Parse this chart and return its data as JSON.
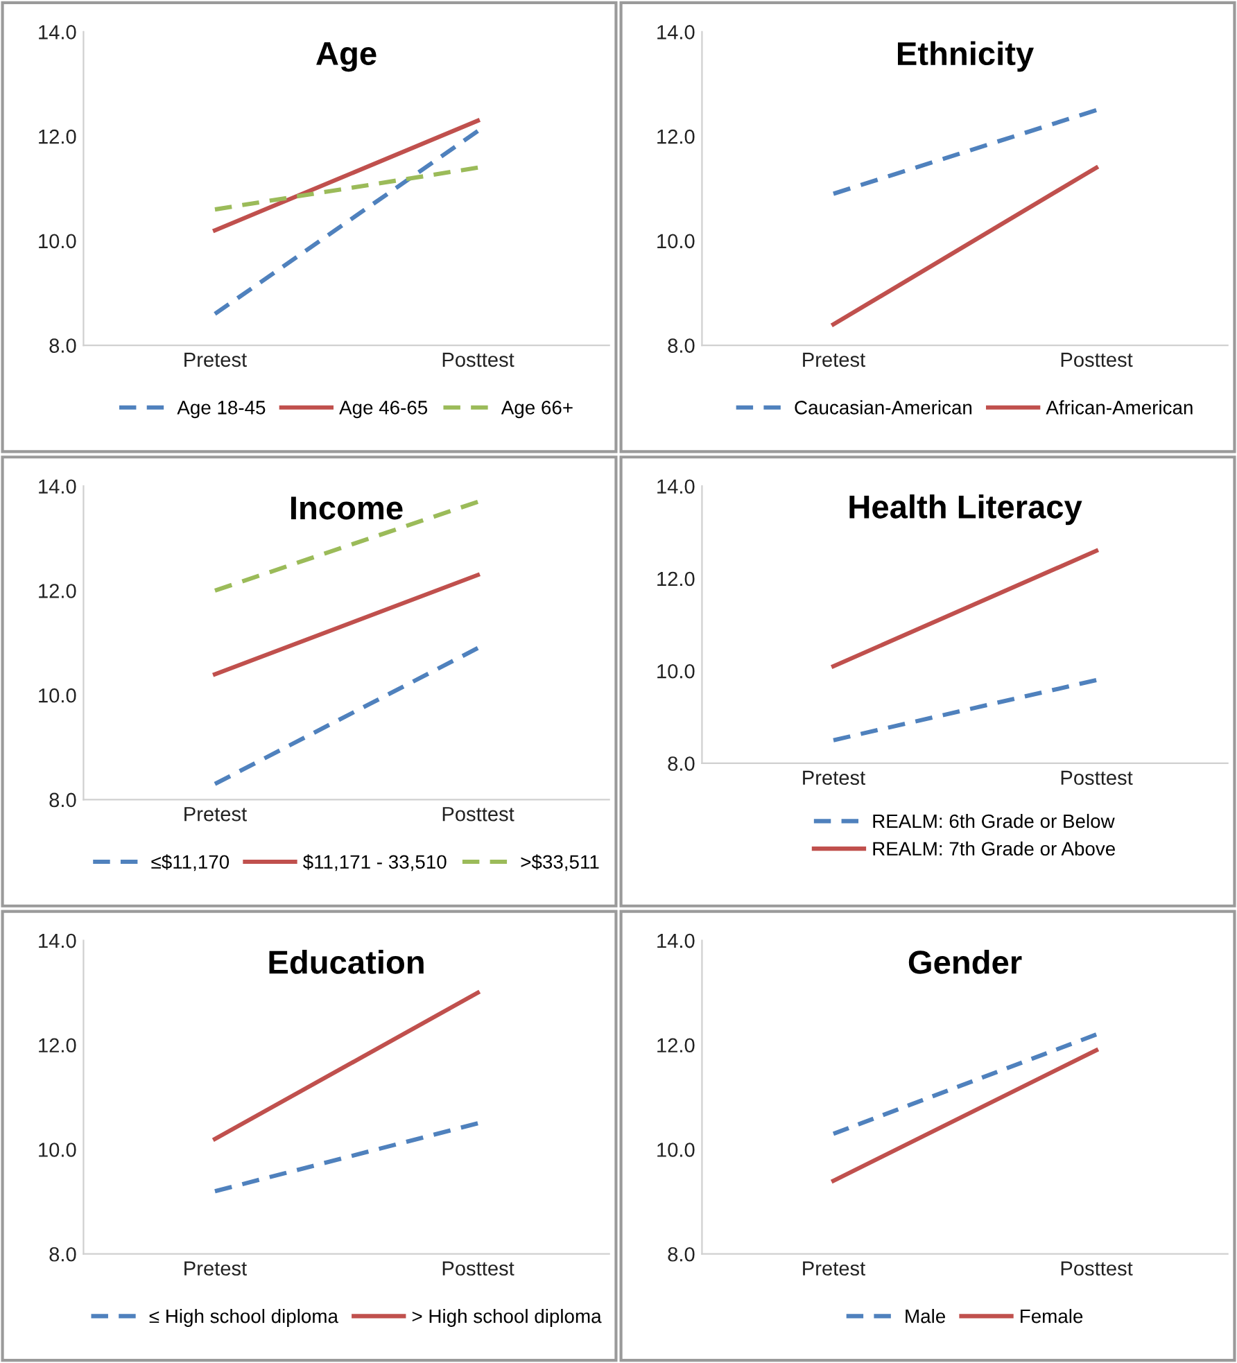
{
  "chart_data": [
    {
      "type": "line",
      "title": "Age",
      "categories": [
        "Pretest",
        "Posttest"
      ],
      "ylim": [
        8,
        14
      ],
      "yticks": [
        {
          "value": 8,
          "label": "8.0"
        },
        {
          "value": 10,
          "label": "10.0"
        },
        {
          "value": 12,
          "label": "12.0"
        },
        {
          "value": 14,
          "label": "14.0"
        }
      ],
      "grid": false,
      "legend": "bottom",
      "marker": "none",
      "series": [
        {
          "name": "Age 18-45",
          "color": "#4f81bd",
          "line_style": "dashed",
          "values": [
            8.6,
            12.1
          ]
        },
        {
          "name": "Age 46-65",
          "color": "#c0504d",
          "line_style": "solid",
          "values": [
            10.2,
            12.3
          ]
        },
        {
          "name": "Age 66+",
          "color": "#9bbb59",
          "line_style": "dashed",
          "values": [
            10.6,
            11.4
          ]
        }
      ]
    },
    {
      "type": "line",
      "title": "Ethnicity",
      "categories": [
        "Pretest",
        "Posttest"
      ],
      "ylim": [
        8,
        14
      ],
      "yticks": [
        {
          "value": 8,
          "label": "8.0"
        },
        {
          "value": 10,
          "label": "10.0"
        },
        {
          "value": 12,
          "label": "12.0"
        },
        {
          "value": 14,
          "label": "14.0"
        }
      ],
      "grid": false,
      "legend": "bottom",
      "marker": "none",
      "series": [
        {
          "name": "Caucasian-American",
          "color": "#4f81bd",
          "line_style": "dashed",
          "values": [
            10.9,
            12.5
          ]
        },
        {
          "name": "African-American",
          "color": "#c0504d",
          "line_style": "solid",
          "values": [
            8.4,
            11.4
          ]
        }
      ]
    },
    {
      "type": "line",
      "title": "Income",
      "categories": [
        "Pretest",
        "Posttest"
      ],
      "ylim": [
        8,
        14
      ],
      "yticks": [
        {
          "value": 8,
          "label": "8.0"
        },
        {
          "value": 10,
          "label": "10.0"
        },
        {
          "value": 12,
          "label": "12.0"
        },
        {
          "value": 14,
          "label": "14.0"
        }
      ],
      "grid": false,
      "legend": "bottom",
      "marker": "none",
      "series": [
        {
          "name": "≤$11,170",
          "color": "#4f81bd",
          "line_style": "dashed",
          "values": [
            8.3,
            10.9
          ]
        },
        {
          "name": "$11,171 - 33,510",
          "color": "#c0504d",
          "line_style": "solid",
          "values": [
            10.4,
            12.3
          ]
        },
        {
          "name": ">$33,511",
          "color": "#9bbb59",
          "line_style": "dashed",
          "values": [
            12.0,
            13.7
          ]
        }
      ]
    },
    {
      "type": "line",
      "title": "Health Literacy",
      "categories": [
        "Pretest",
        "Posttest"
      ],
      "ylim": [
        8,
        14
      ],
      "yticks": [
        {
          "value": 8,
          "label": "8.0"
        },
        {
          "value": 10,
          "label": "10.0"
        },
        {
          "value": 12,
          "label": "12.0"
        },
        {
          "value": 14,
          "label": "14.0"
        }
      ],
      "grid": false,
      "legend": "bottom",
      "marker": "none",
      "series": [
        {
          "name": "REALM: 6th Grade or Below",
          "color": "#4f81bd",
          "line_style": "dashed",
          "values": [
            8.5,
            9.8
          ]
        },
        {
          "name": "REALM: 7th Grade or Above",
          "color": "#c0504d",
          "line_style": "solid",
          "values": [
            10.1,
            12.6
          ]
        }
      ]
    },
    {
      "type": "line",
      "title": "Education",
      "categories": [
        "Pretest",
        "Posttest"
      ],
      "ylim": [
        8,
        14
      ],
      "yticks": [
        {
          "value": 8,
          "label": "8.0"
        },
        {
          "value": 10,
          "label": "10.0"
        },
        {
          "value": 12,
          "label": "12.0"
        },
        {
          "value": 14,
          "label": "14.0"
        }
      ],
      "grid": false,
      "legend": "bottom",
      "marker": "none",
      "series": [
        {
          "name": "≤ High school diploma",
          "color": "#4f81bd",
          "line_style": "dashed",
          "values": [
            9.2,
            10.5
          ]
        },
        {
          "name": "> High school diploma",
          "color": "#c0504d",
          "line_style": "solid",
          "values": [
            10.2,
            13.0
          ]
        }
      ]
    },
    {
      "type": "line",
      "title": "Gender",
      "categories": [
        "Pretest",
        "Posttest"
      ],
      "ylim": [
        8,
        14
      ],
      "yticks": [
        {
          "value": 8,
          "label": "8.0"
        },
        {
          "value": 10,
          "label": "10.0"
        },
        {
          "value": 12,
          "label": "12.0"
        },
        {
          "value": 14,
          "label": "14.0"
        }
      ],
      "grid": false,
      "legend": "bottom",
      "marker": "none",
      "series": [
        {
          "name": "Male",
          "color": "#4f81bd",
          "line_style": "dashed",
          "values": [
            10.3,
            12.2
          ]
        },
        {
          "name": "Female",
          "color": "#c0504d",
          "line_style": "solid",
          "values": [
            9.4,
            11.9
          ]
        }
      ]
    }
  ]
}
